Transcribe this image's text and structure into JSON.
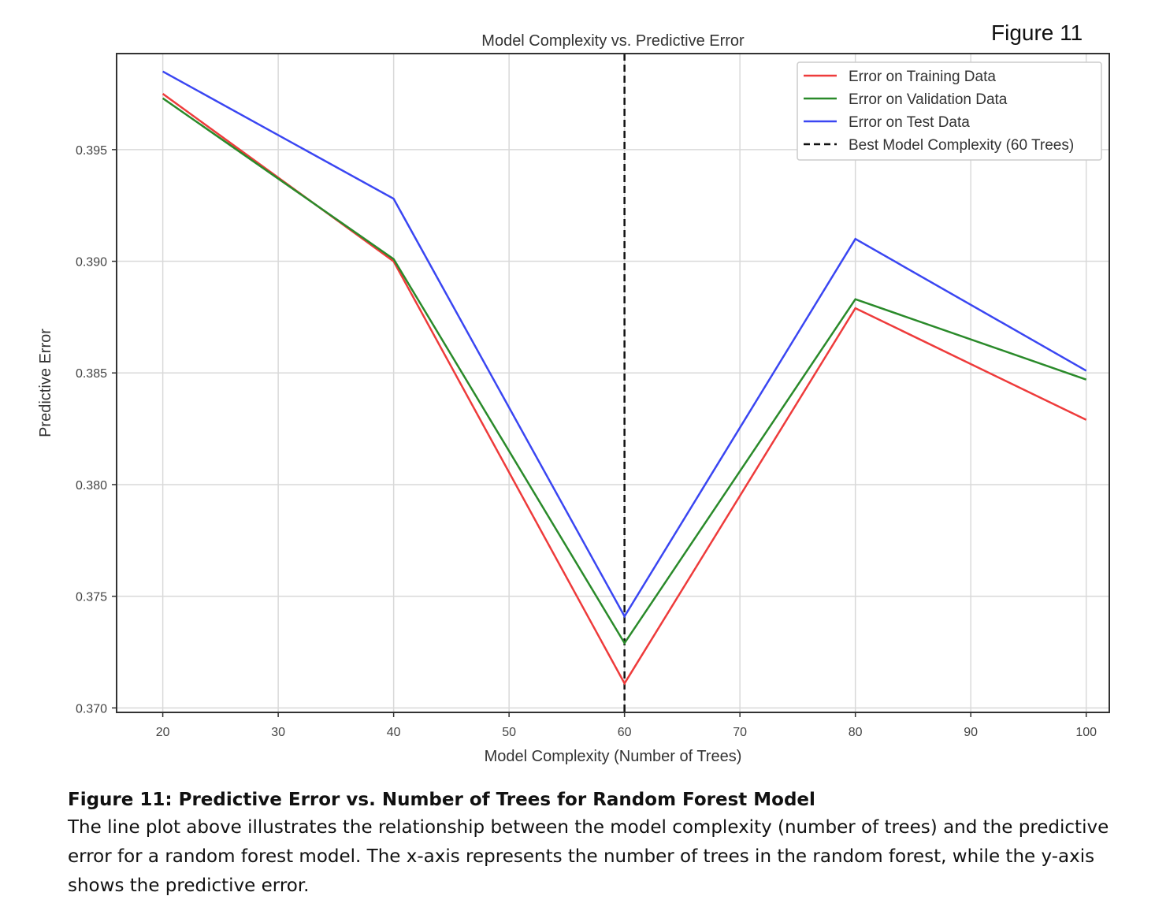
{
  "figure_tag": "Figure 11",
  "caption": {
    "title": "Figure 11: Predictive Error vs. Number of Trees for Random Forest Model",
    "body": "The line plot above illustrates the relationship between the model complexity (number of trees) and the predictive error for a random forest model. The x-axis represents the number of trees in the random forest, while the y-axis shows the predictive error."
  },
  "chart_data": {
    "type": "line",
    "title": "Model Complexity vs. Predictive Error",
    "xlabel": "Model Complexity (Number of Trees)",
    "ylabel": "Predictive Error",
    "xlim": [
      16,
      102
    ],
    "ylim": [
      0.3698,
      0.3993
    ],
    "xticks": [
      20,
      30,
      40,
      50,
      60,
      70,
      80,
      90,
      100
    ],
    "yticks": [
      0.37,
      0.375,
      0.38,
      0.385,
      0.39,
      0.395
    ],
    "ytick_labels": [
      "0.370",
      "0.375",
      "0.380",
      "0.385",
      "0.390",
      "0.395"
    ],
    "grid": true,
    "legend_position": "top-right",
    "x": [
      20,
      40,
      60,
      80,
      100
    ],
    "series": [
      {
        "name": "Error on Training Data",
        "color": "#ee3b3b",
        "values": [
          0.3975,
          0.39,
          0.3711,
          0.3879,
          0.3829
        ]
      },
      {
        "name": "Error on Validation Data",
        "color": "#2a8a2a",
        "values": [
          0.3973,
          0.3901,
          0.3729,
          0.3883,
          0.3847
        ]
      },
      {
        "name": "Error on Test Data",
        "color": "#3a46f2",
        "values": [
          0.3985,
          0.3928,
          0.3741,
          0.391,
          0.3851
        ]
      }
    ],
    "reference_line": {
      "name": "Best Model Complexity (60 Trees)",
      "x": 60,
      "color": "#111111",
      "style": "dashed"
    }
  }
}
